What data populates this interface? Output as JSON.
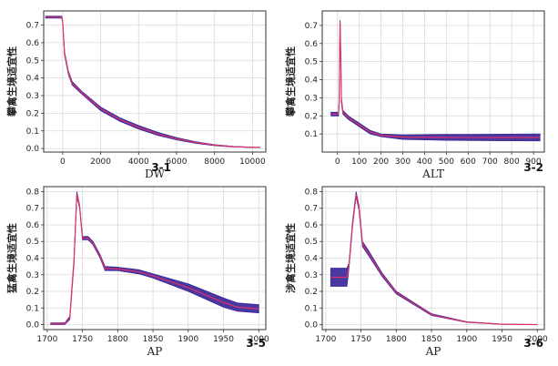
{
  "colors": {
    "band": "#3a2799",
    "curve": "#e0306a",
    "grid": "#d9d9d9",
    "axis": "#333333"
  },
  "chart_data": [
    {
      "id": "3-1",
      "type": "line",
      "xlabel": "DW",
      "ylabel": "攀禽生境适宜性",
      "xlim": [
        -1000,
        10700
      ],
      "ylim": [
        -0.02,
        0.78
      ],
      "xticks": [
        0,
        2000,
        4000,
        6000,
        8000,
        10000
      ],
      "yticks": [
        0.0,
        0.1,
        0.2,
        0.3,
        0.4,
        0.5,
        0.6,
        0.7
      ],
      "yticklabels": [
        "0.0",
        "0.1",
        "0.2",
        "0.3",
        "0.4",
        "0.5",
        "0.6",
        "0.7"
      ],
      "series": [
        {
          "name": "upper",
          "x": [
            -900,
            -50,
            0,
            100,
            300,
            500,
            1000,
            2000,
            3000,
            4000,
            5000,
            6000,
            7000,
            8000,
            9000,
            10000,
            10400
          ],
          "values": [
            0.75,
            0.75,
            0.72,
            0.55,
            0.44,
            0.38,
            0.325,
            0.235,
            0.175,
            0.13,
            0.092,
            0.062,
            0.039,
            0.022,
            0.012,
            0.008,
            0.007
          ]
        },
        {
          "name": "lower",
          "x": [
            -900,
            -50,
            0,
            100,
            300,
            500,
            1000,
            2000,
            3000,
            4000,
            5000,
            6000,
            7000,
            8000,
            9000,
            10000,
            10400
          ],
          "values": [
            0.74,
            0.74,
            0.71,
            0.53,
            0.42,
            0.36,
            0.31,
            0.215,
            0.155,
            0.11,
            0.075,
            0.049,
            0.03,
            0.016,
            0.009,
            0.006,
            0.006
          ]
        }
      ]
    },
    {
      "id": "3-2",
      "type": "line",
      "xlabel": "ALT",
      "ylabel": "攀禽生境适宜性",
      "xlim": [
        -70,
        950
      ],
      "ylim": [
        0.0,
        0.78
      ],
      "xticks": [
        0,
        100,
        200,
        300,
        400,
        500,
        600,
        700,
        800,
        900
      ],
      "yticks": [
        0.1,
        0.2,
        0.3,
        0.4,
        0.5,
        0.6,
        0.7
      ],
      "yticklabels": [
        "0.1",
        "0.2",
        "0.3",
        "0.4",
        "0.5",
        "0.6",
        "0.7"
      ],
      "series": [
        {
          "name": "upper",
          "x": [
            -30,
            5,
            8,
            10,
            12,
            15,
            18,
            25,
            50,
            100,
            150,
            200,
            300,
            500,
            700,
            930
          ],
          "values": [
            0.22,
            0.22,
            0.3,
            0.55,
            0.73,
            0.55,
            0.3,
            0.23,
            0.2,
            0.16,
            0.12,
            0.1,
            0.095,
            0.097,
            0.098,
            0.1
          ]
        },
        {
          "name": "lower",
          "x": [
            -30,
            5,
            8,
            10,
            12,
            15,
            18,
            25,
            50,
            100,
            150,
            200,
            300,
            500,
            700,
            930
          ],
          "values": [
            0.2,
            0.2,
            0.28,
            0.53,
            0.7,
            0.53,
            0.27,
            0.21,
            0.18,
            0.14,
            0.1,
            0.085,
            0.07,
            0.065,
            0.063,
            0.062
          ]
        }
      ]
    },
    {
      "id": "3-5",
      "type": "line",
      "xlabel": "AP",
      "ylabel": "猛禽生境适宜性",
      "xlim": [
        1695,
        2010
      ],
      "ylim": [
        -0.03,
        0.83
      ],
      "xticks": [
        1700,
        1750,
        1800,
        1850,
        1900,
        1950,
        2000
      ],
      "yticks": [
        0.0,
        0.1,
        0.2,
        0.3,
        0.4,
        0.5,
        0.6,
        0.7,
        0.8
      ],
      "yticklabels": [
        "0.0",
        "0.1",
        "0.2",
        "0.3",
        "0.4",
        "0.5",
        "0.6",
        "0.7",
        "0.8"
      ],
      "series": [
        {
          "name": "upper",
          "x": [
            1705,
            1725,
            1732,
            1738,
            1742,
            1746,
            1750,
            1758,
            1765,
            1775,
            1782,
            1800,
            1830,
            1850,
            1900,
            1950,
            1970,
            2000
          ],
          "values": [
            0.01,
            0.01,
            0.05,
            0.4,
            0.8,
            0.72,
            0.53,
            0.53,
            0.5,
            0.42,
            0.35,
            0.345,
            0.33,
            0.305,
            0.245,
            0.16,
            0.13,
            0.12
          ]
        },
        {
          "name": "lower",
          "x": [
            1705,
            1725,
            1732,
            1738,
            1742,
            1746,
            1750,
            1758,
            1765,
            1775,
            1782,
            1800,
            1830,
            1850,
            1900,
            1950,
            1970,
            2000
          ],
          "values": [
            0.0,
            0.0,
            0.03,
            0.37,
            0.77,
            0.7,
            0.51,
            0.51,
            0.48,
            0.4,
            0.325,
            0.325,
            0.305,
            0.28,
            0.2,
            0.105,
            0.08,
            0.07
          ]
        }
      ]
    },
    {
      "id": "3-6",
      "type": "line",
      "xlabel": "AP",
      "ylabel": "涉禽生境适宜性",
      "xlim": [
        1695,
        2010
      ],
      "ylim": [
        -0.03,
        0.83
      ],
      "xticks": [
        1700,
        1750,
        1800,
        1850,
        1900,
        1950,
        2000
      ],
      "yticks": [
        0.0,
        0.1,
        0.2,
        0.3,
        0.4,
        0.5,
        0.6,
        0.7,
        0.8
      ],
      "yticklabels": [
        "0.0",
        "0.1",
        "0.2",
        "0.3",
        "0.4",
        "0.5",
        "0.6",
        "0.7",
        "0.8"
      ],
      "series": [
        {
          "name": "upper",
          "x": [
            1707,
            1730,
            1733,
            1738,
            1743,
            1747,
            1752,
            1760,
            1780,
            1800,
            1850,
            1900,
            1950,
            2000
          ],
          "values": [
            0.34,
            0.34,
            0.37,
            0.62,
            0.8,
            0.72,
            0.5,
            0.45,
            0.31,
            0.2,
            0.065,
            0.017,
            0.003,
            0.0
          ]
        },
        {
          "name": "lower",
          "x": [
            1707,
            1730,
            1733,
            1738,
            1743,
            1747,
            1752,
            1760,
            1780,
            1800,
            1850,
            1900,
            1950,
            2000
          ],
          "values": [
            0.23,
            0.23,
            0.34,
            0.59,
            0.77,
            0.69,
            0.47,
            0.42,
            0.29,
            0.185,
            0.055,
            0.013,
            0.002,
            0.0
          ]
        }
      ]
    }
  ]
}
